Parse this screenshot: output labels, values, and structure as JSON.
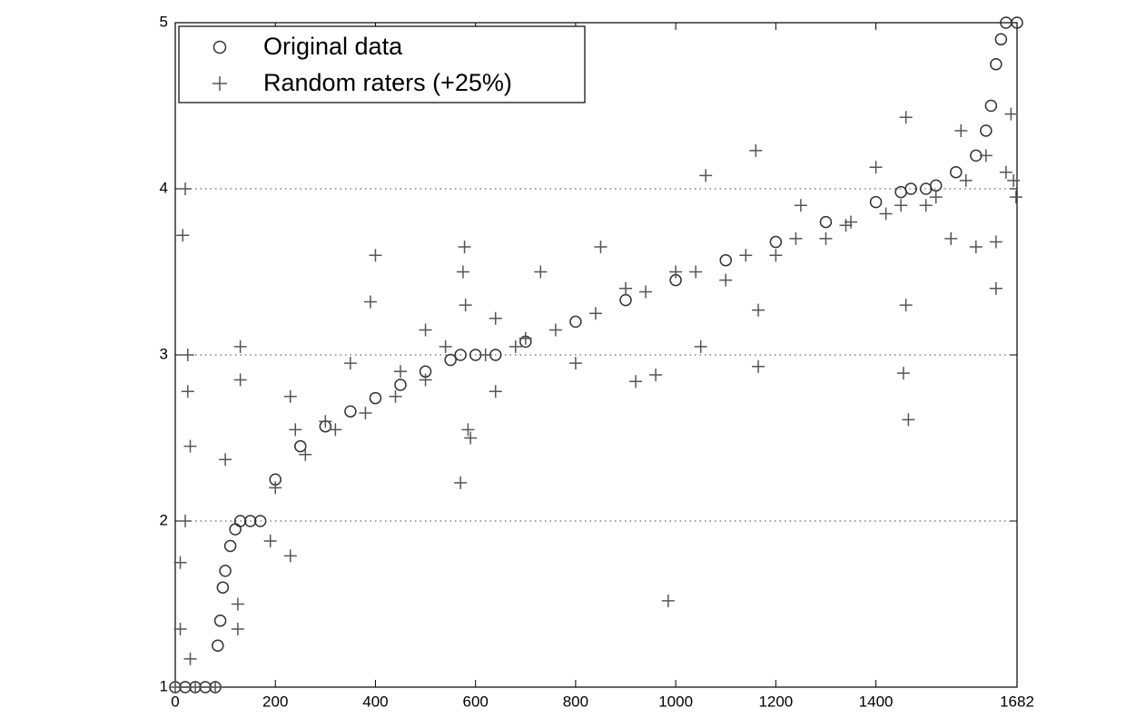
{
  "chart_data": {
    "type": "scatter",
    "xlim": [
      0,
      1682
    ],
    "ylim": [
      1,
      5
    ],
    "xticks": [
      0,
      200,
      400,
      600,
      800,
      1000,
      1200,
      1400,
      1682
    ],
    "yticks": [
      1,
      2,
      3,
      4,
      5
    ],
    "grid": true,
    "legend": "upper-left",
    "series": [
      {
        "name": "Original data",
        "marker": "circle",
        "color": "#333333",
        "x": [
          0,
          20,
          40,
          60,
          80,
          85,
          90,
          95,
          100,
          110,
          120,
          130,
          150,
          170,
          200,
          250,
          300,
          350,
          400,
          450,
          500,
          550,
          570,
          600,
          640,
          700,
          800,
          900,
          1000,
          1100,
          1200,
          1300,
          1400,
          1450,
          1470,
          1500,
          1520,
          1560,
          1600,
          1620,
          1630,
          1640,
          1650,
          1660,
          1682
        ],
        "values": [
          1,
          1,
          1,
          1,
          1,
          1.25,
          1.4,
          1.6,
          1.7,
          1.85,
          1.95,
          2,
          2,
          2,
          2.25,
          2.45,
          2.57,
          2.66,
          2.74,
          2.82,
          2.9,
          2.97,
          3,
          3,
          3,
          3.08,
          3.2,
          3.33,
          3.45,
          3.57,
          3.68,
          3.8,
          3.92,
          3.98,
          4,
          4,
          4.02,
          4.1,
          4.2,
          4.35,
          4.5,
          4.75,
          4.9,
          5,
          5
        ]
      },
      {
        "name": "Random raters (+25%)",
        "marker": "plus",
        "color": "#555555",
        "x": [
          0,
          10,
          10,
          15,
          20,
          20,
          25,
          25,
          30,
          30,
          40,
          80,
          100,
          125,
          125,
          130,
          130,
          190,
          200,
          230,
          230,
          240,
          260,
          300,
          320,
          350,
          380,
          390,
          400,
          440,
          450,
          500,
          500,
          540,
          570,
          575,
          578,
          580,
          585,
          590,
          620,
          640,
          640,
          680,
          700,
          730,
          760,
          800,
          840,
          850,
          900,
          920,
          940,
          960,
          985,
          1000,
          1040,
          1050,
          1060,
          1100,
          1140,
          1160,
          1165,
          1165,
          1200,
          1240,
          1250,
          1300,
          1340,
          1350,
          1400,
          1420,
          1450,
          1455,
          1460,
          1460,
          1465,
          1500,
          1520,
          1550,
          1570,
          1580,
          1600,
          1620,
          1640,
          1640,
          1660,
          1670,
          1675,
          1680
        ],
        "values": [
          1,
          1.75,
          1.35,
          3.72,
          4,
          2,
          2.78,
          3,
          2.45,
          1.17,
          1,
          1,
          2.37,
          1.5,
          1.35,
          3.05,
          2.85,
          1.88,
          2.2,
          1.79,
          2.75,
          2.55,
          2.4,
          2.6,
          2.55,
          2.95,
          2.65,
          3.32,
          3.6,
          2.75,
          2.9,
          3.15,
          2.85,
          3.05,
          2.23,
          3.5,
          3.65,
          3.3,
          2.55,
          2.5,
          3,
          3.22,
          2.78,
          3.05,
          3.1,
          3.5,
          3.15,
          2.95,
          3.25,
          3.65,
          3.4,
          2.84,
          3.38,
          2.88,
          1.52,
          3.5,
          3.5,
          3.05,
          4.08,
          3.45,
          3.6,
          4.23,
          3.27,
          2.93,
          3.6,
          3.7,
          3.9,
          3.7,
          3.78,
          3.8,
          4.13,
          3.85,
          3.9,
          2.89,
          4.43,
          3.3,
          2.61,
          3.9,
          3.95,
          3.7,
          4.35,
          4.05,
          3.65,
          4.2,
          3.4,
          3.68,
          4.1,
          4.45,
          4.05,
          3.95
        ]
      }
    ]
  }
}
